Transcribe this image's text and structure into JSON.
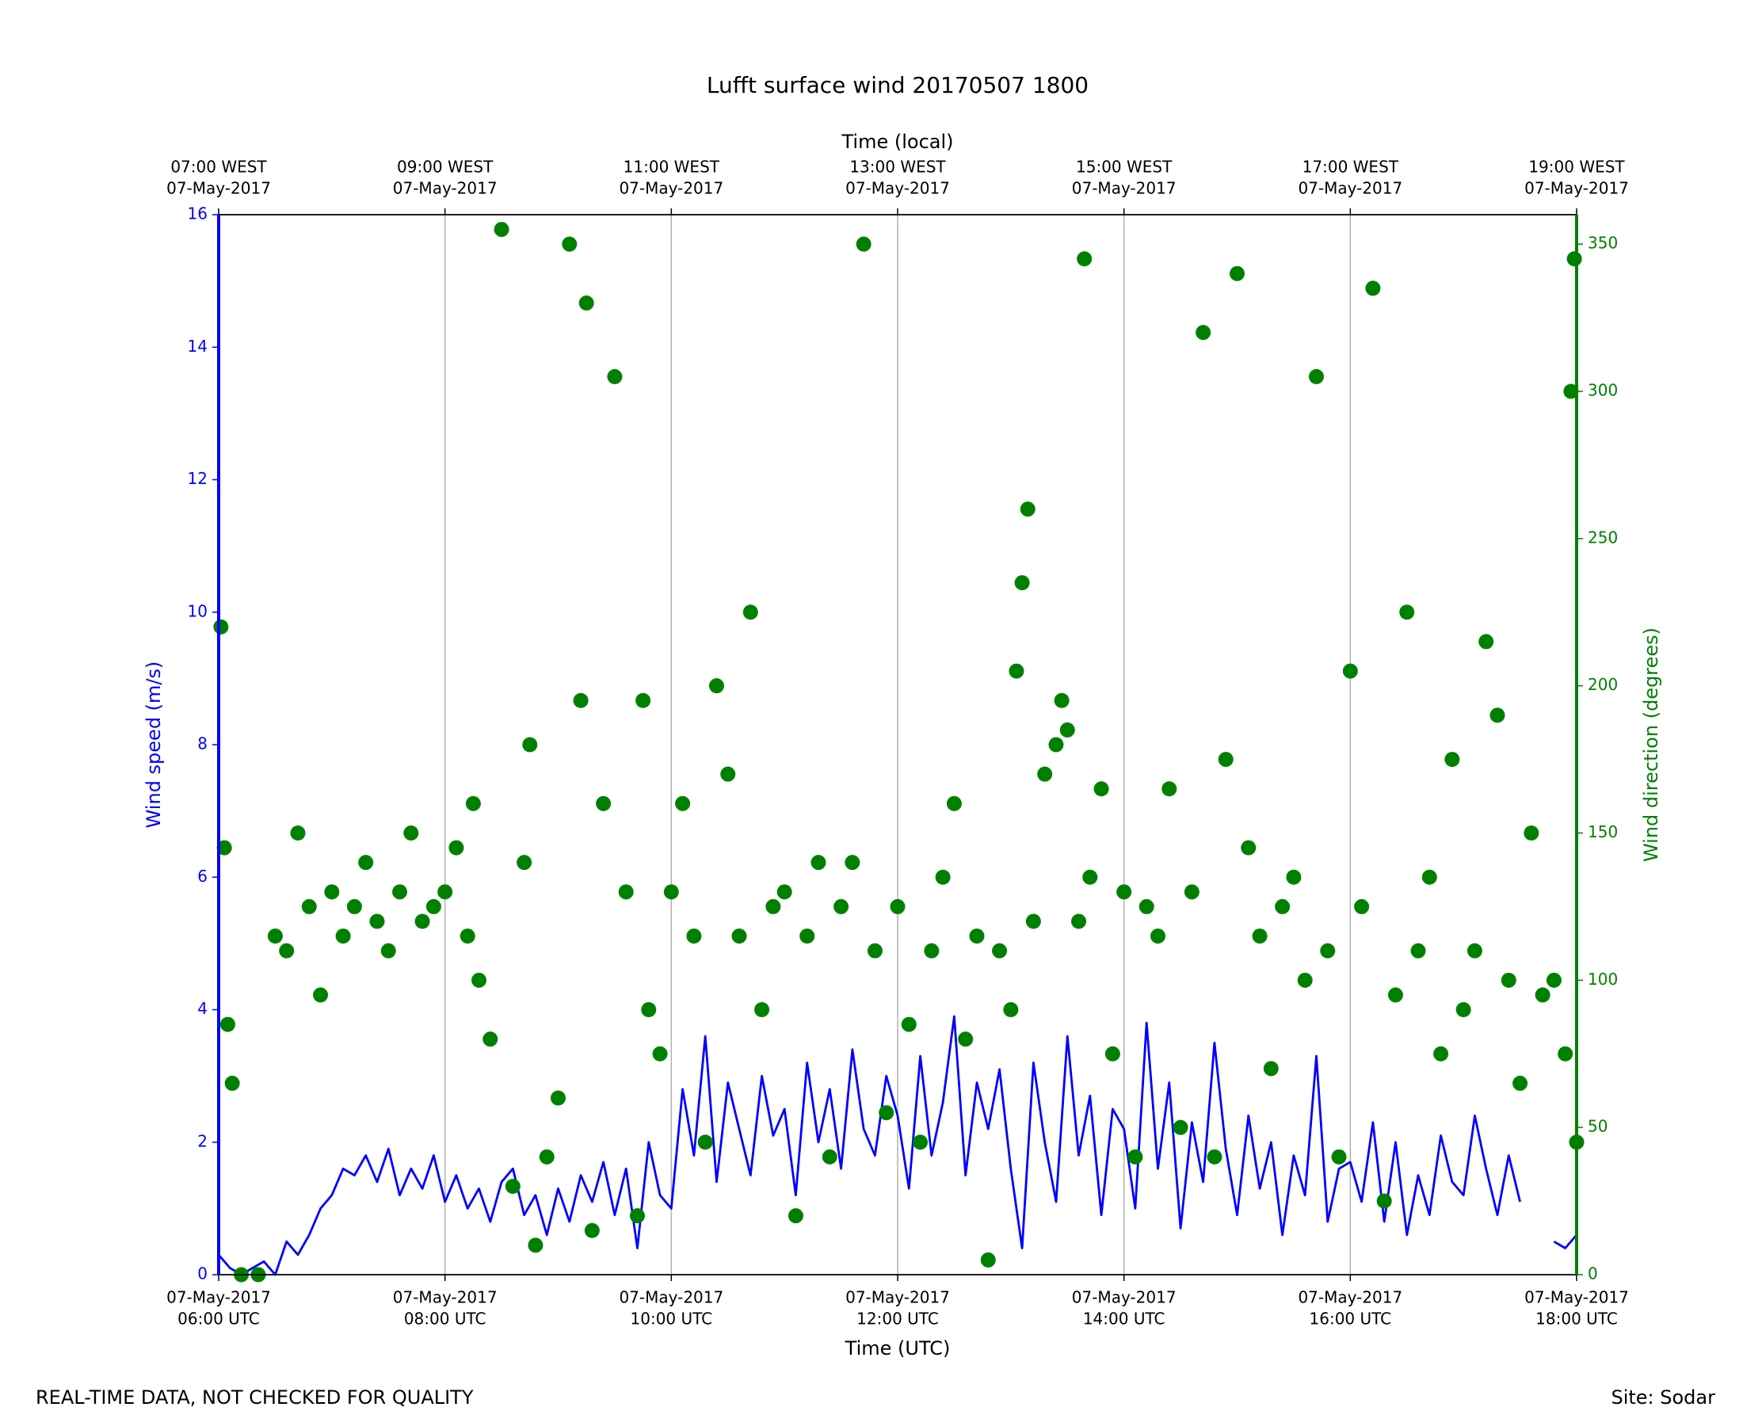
{
  "chart_data": {
    "type": "line",
    "title": "Lufft surface wind 20170507 1800",
    "xlabel": "Time (UTC)",
    "x2label": "Time (local)",
    "ylabel": "Wind speed (m/s)",
    "y2label": "Wind direction (degrees)",
    "footer_left": "REAL-TIME DATA, NOT CHECKED FOR QUALITY",
    "footer_right": "Site: Sodar",
    "xlim": [
      6,
      18
    ],
    "xticks": [
      {
        "value": 6,
        "label": [
          "07-May-2017",
          "06:00 UTC"
        ]
      },
      {
        "value": 8,
        "label": [
          "07-May-2017",
          "08:00 UTC"
        ]
      },
      {
        "value": 10,
        "label": [
          "07-May-2017",
          "10:00 UTC"
        ]
      },
      {
        "value": 12,
        "label": [
          "07-May-2017",
          "12:00 UTC"
        ]
      },
      {
        "value": 14,
        "label": [
          "07-May-2017",
          "14:00 UTC"
        ]
      },
      {
        "value": 16,
        "label": [
          "07-May-2017",
          "16:00 UTC"
        ]
      },
      {
        "value": 18,
        "label": [
          "07-May-2017",
          "18:00 UTC"
        ]
      }
    ],
    "x2ticks": [
      {
        "value": 6,
        "label": [
          "07:00 WEST",
          "07-May-2017"
        ]
      },
      {
        "value": 8,
        "label": [
          "09:00 WEST",
          "07-May-2017"
        ]
      },
      {
        "value": 10,
        "label": [
          "11:00 WEST",
          "07-May-2017"
        ]
      },
      {
        "value": 12,
        "label": [
          "13:00 WEST",
          "07-May-2017"
        ]
      },
      {
        "value": 14,
        "label": [
          "15:00 WEST",
          "07-May-2017"
        ]
      },
      {
        "value": 16,
        "label": [
          "17:00 WEST",
          "07-May-2017"
        ]
      },
      {
        "value": 18,
        "label": [
          "19:00 WEST",
          "07-May-2017"
        ]
      }
    ],
    "ylim": [
      0,
      16
    ],
    "yticks": [
      0,
      2,
      4,
      6,
      8,
      10,
      12,
      14,
      16
    ],
    "y2lim": [
      0,
      360
    ],
    "y2ticks": [
      0,
      50,
      100,
      150,
      200,
      250,
      300,
      350
    ],
    "grid": true,
    "series": [
      {
        "type": "line",
        "color": "#0000ff",
        "x": [
          6.0,
          6.1,
          6.2,
          6.3,
          6.4,
          6.5,
          6.6,
          6.7,
          6.8,
          6.9,
          7.0,
          7.1,
          7.2,
          7.3,
          7.4,
          7.5,
          7.6,
          7.7,
          7.8,
          7.9,
          8.0,
          8.1,
          8.2,
          8.3,
          8.4,
          8.5,
          8.6,
          8.7,
          8.8,
          8.9,
          9.0,
          9.1,
          9.2,
          9.3,
          9.4,
          9.5,
          9.6,
          9.7,
          9.8,
          9.9,
          10.0,
          10.1,
          10.2,
          10.3,
          10.4,
          10.5,
          10.6,
          10.7,
          10.8,
          10.9,
          11.0,
          11.1,
          11.2,
          11.3,
          11.4,
          11.5,
          11.6,
          11.7,
          11.8,
          11.9,
          12.0,
          12.1,
          12.2,
          12.3,
          12.4,
          12.5,
          12.6,
          12.7,
          12.8,
          12.9,
          13.0,
          13.1,
          13.2,
          13.3,
          13.4,
          13.5,
          13.6,
          13.7,
          13.8,
          13.9,
          14.0,
          14.1,
          14.2,
          14.3,
          14.4,
          14.5,
          14.6,
          14.7,
          14.8,
          14.9,
          15.0,
          15.1,
          15.2,
          15.3,
          15.4,
          15.5,
          15.6,
          15.7,
          15.8,
          15.9,
          16.0,
          16.1,
          16.2,
          16.3,
          16.4,
          16.5,
          16.6,
          16.7,
          16.8,
          16.9,
          17.0,
          17.1,
          17.2,
          17.3,
          17.4,
          17.5,
          17.6,
          17.7,
          17.8,
          17.9,
          18.0
        ],
        "values": [
          0.3,
          0.1,
          0.0,
          0.1,
          0.2,
          0.0,
          0.5,
          0.3,
          0.6,
          1.0,
          1.2,
          1.6,
          1.5,
          1.8,
          1.4,
          1.9,
          1.2,
          1.6,
          1.3,
          1.8,
          1.1,
          1.5,
          1.0,
          1.3,
          0.8,
          1.4,
          1.6,
          0.9,
          1.2,
          0.6,
          1.3,
          0.8,
          1.5,
          1.1,
          1.7,
          0.9,
          1.6,
          0.4,
          2.0,
          1.2,
          1.0,
          2.8,
          1.8,
          3.6,
          1.4,
          2.9,
          2.2,
          1.5,
          3.0,
          2.1,
          2.5,
          1.2,
          3.2,
          2.0,
          2.8,
          1.6,
          3.4,
          2.2,
          1.8,
          3.0,
          2.4,
          1.3,
          3.3,
          1.8,
          2.6,
          3.9,
          1.5,
          2.9,
          2.2,
          3.1,
          1.6,
          0.4,
          3.2,
          2.0,
          1.1,
          3.6,
          1.8,
          2.7,
          0.9,
          2.5,
          2.2,
          1.0,
          3.8,
          1.6,
          2.9,
          0.7,
          2.3,
          1.4,
          3.5,
          1.9,
          0.9,
          2.4,
          1.3,
          2.0,
          0.6,
          1.8,
          1.2,
          3.3,
          0.8,
          1.6,
          1.7,
          1.1,
          2.3,
          0.8,
          2.0,
          0.6,
          1.5,
          0.9,
          2.1,
          1.4,
          1.2,
          2.4,
          1.6,
          0.9,
          1.8,
          1.1,
          null,
          null,
          0.5,
          0.4,
          0.6
        ]
      },
      {
        "type": "scatter",
        "axis": "y2",
        "color": "#008000",
        "x": [
          6.02,
          6.05,
          6.08,
          6.12,
          6.2,
          6.35,
          6.5,
          6.6,
          6.7,
          6.8,
          6.9,
          7.0,
          7.1,
          7.2,
          7.3,
          7.4,
          7.5,
          7.6,
          7.7,
          7.8,
          7.9,
          8.0,
          8.1,
          8.2,
          8.25,
          8.3,
          8.4,
          8.5,
          8.6,
          8.7,
          8.75,
          8.8,
          8.9,
          9.0,
          9.1,
          9.2,
          9.25,
          9.3,
          9.4,
          9.5,
          9.6,
          9.7,
          9.75,
          9.8,
          9.9,
          10.0,
          10.1,
          10.2,
          10.3,
          10.4,
          10.5,
          10.6,
          10.7,
          10.8,
          10.9,
          11.0,
          11.1,
          11.2,
          11.3,
          11.4,
          11.5,
          11.6,
          11.7,
          11.8,
          11.9,
          12.0,
          12.1,
          12.2,
          12.3,
          12.4,
          12.5,
          12.6,
          12.7,
          12.8,
          12.9,
          13.0,
          13.05,
          13.1,
          13.15,
          13.2,
          13.3,
          13.4,
          13.45,
          13.5,
          13.6,
          13.65,
          13.7,
          13.8,
          13.9,
          14.0,
          14.1,
          14.2,
          14.3,
          14.4,
          14.5,
          14.6,
          14.7,
          14.8,
          14.9,
          15.0,
          15.1,
          15.2,
          15.3,
          15.4,
          15.5,
          15.6,
          15.7,
          15.8,
          15.9,
          16.0,
          16.1,
          16.2,
          16.3,
          16.4,
          16.5,
          16.6,
          16.7,
          16.8,
          16.9,
          17.0,
          17.1,
          17.2,
          17.3,
          17.4,
          17.5,
          17.6,
          17.7,
          17.8,
          17.9,
          17.95,
          17.98,
          18.0
        ],
        "values": [
          220,
          145,
          85,
          65,
          0,
          0,
          115,
          110,
          150,
          125,
          95,
          130,
          115,
          125,
          140,
          120,
          110,
          130,
          150,
          120,
          125,
          130,
          145,
          115,
          160,
          100,
          80,
          355,
          30,
          140,
          180,
          10,
          40,
          60,
          350,
          195,
          330,
          15,
          160,
          305,
          130,
          20,
          195,
          90,
          75,
          130,
          160,
          115,
          45,
          200,
          170,
          115,
          225,
          90,
          125,
          130,
          20,
          115,
          140,
          40,
          125,
          140,
          350,
          110,
          55,
          125,
          85,
          45,
          110,
          135,
          160,
          80,
          115,
          5,
          110,
          90,
          205,
          235,
          260,
          120,
          170,
          180,
          195,
          185,
          120,
          345,
          135,
          165,
          75,
          130,
          40,
          125,
          115,
          165,
          50,
          130,
          320,
          40,
          175,
          340,
          145,
          115,
          70,
          125,
          135,
          100,
          305,
          110,
          40,
          205,
          125,
          335,
          25,
          95,
          225,
          110,
          135,
          75,
          175,
          90,
          110,
          215,
          190,
          100,
          65,
          150,
          95,
          100,
          75,
          300,
          345,
          45
        ]
      }
    ]
  }
}
